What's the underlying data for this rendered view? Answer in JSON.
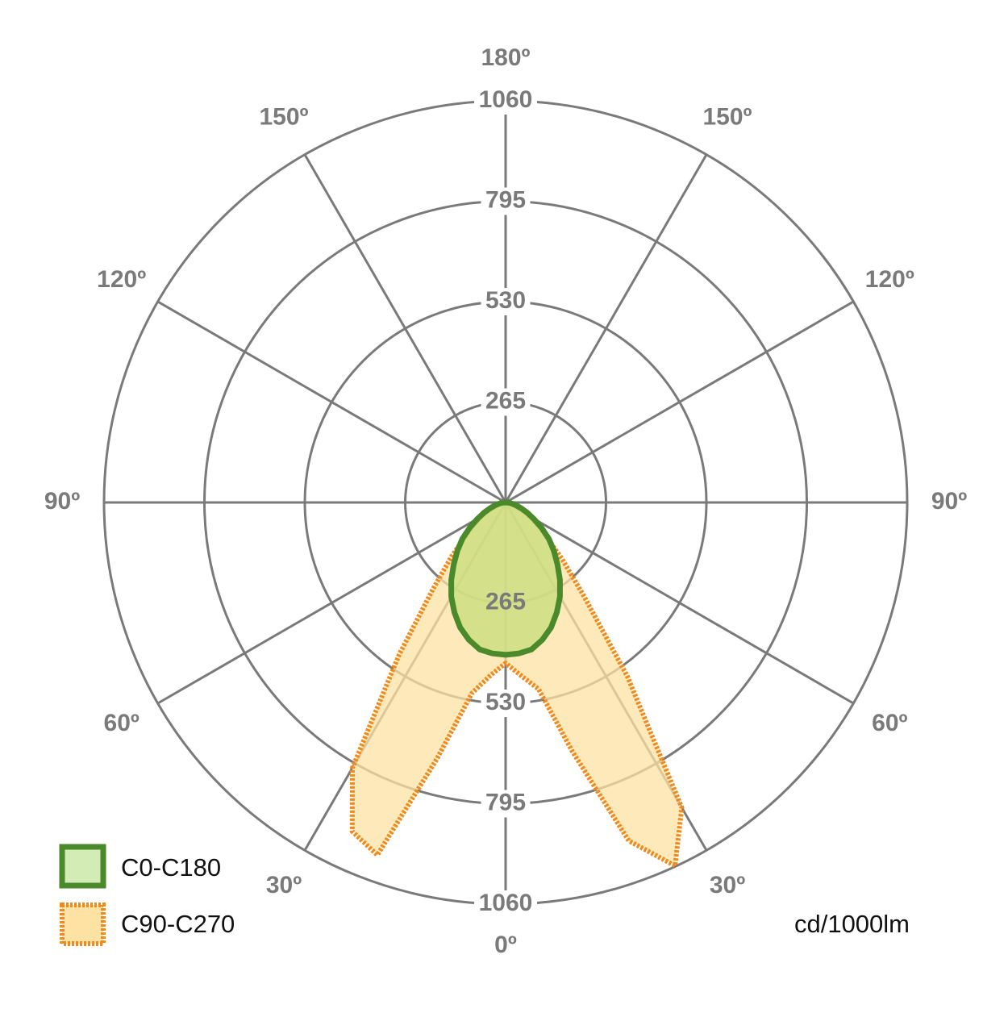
{
  "chart_data": {
    "type": "polar",
    "unit": "cd/1000lm",
    "rlim": [
      0,
      1060
    ],
    "rticks": [
      265,
      530,
      795,
      1060
    ],
    "angle_ticks": [
      {
        "value": 0,
        "label": "0º"
      },
      {
        "value": 30,
        "label": "30º"
      },
      {
        "value": -30,
        "label": "30º"
      },
      {
        "value": 60,
        "label": "60º"
      },
      {
        "value": -60,
        "label": "60º"
      },
      {
        "value": 90,
        "label": "90º"
      },
      {
        "value": -90,
        "label": "90º"
      },
      {
        "value": 120,
        "label": "120º"
      },
      {
        "value": -120,
        "label": "120º"
      },
      {
        "value": 150,
        "label": "150º"
      },
      {
        "value": -150,
        "label": "150º"
      },
      {
        "value": 180,
        "label": "180º"
      }
    ],
    "angles": [
      -90,
      -85,
      -80,
      -75,
      -70,
      -65,
      -60,
      -55,
      -50,
      -45,
      -40,
      -35,
      -30,
      -25,
      -20,
      -15,
      -10,
      -5,
      0,
      5,
      10,
      15,
      20,
      25,
      30,
      35,
      40,
      45,
      50,
      55,
      60,
      65,
      70,
      75,
      80,
      85,
      90
    ],
    "series": [
      {
        "name": "C0-C180",
        "color": "#4a8a2a",
        "fill": "#c9df7e",
        "values": [
          0,
          8,
          17,
          28,
          43,
          62,
          85,
          115,
          149,
          180,
          213,
          250,
          287,
          320,
          351,
          375,
          394,
          400,
          402,
          400,
          394,
          375,
          351,
          320,
          287,
          250,
          213,
          180,
          149,
          115,
          85,
          62,
          43,
          28,
          17,
          8,
          0
        ]
      },
      {
        "name": "C90-C270",
        "color": "#f08a1c",
        "fill": "#fde2a4",
        "values": [
          0,
          5,
          11,
          20,
          32,
          50,
          75,
          105,
          138,
          202,
          298,
          490,
          809,
          958,
          990,
          700,
          511,
          458,
          424,
          458,
          500,
          680,
          950,
          1058,
          930,
          560,
          320,
          210,
          140,
          105,
          75,
          50,
          32,
          20,
          11,
          5,
          0
        ]
      }
    ]
  }
}
